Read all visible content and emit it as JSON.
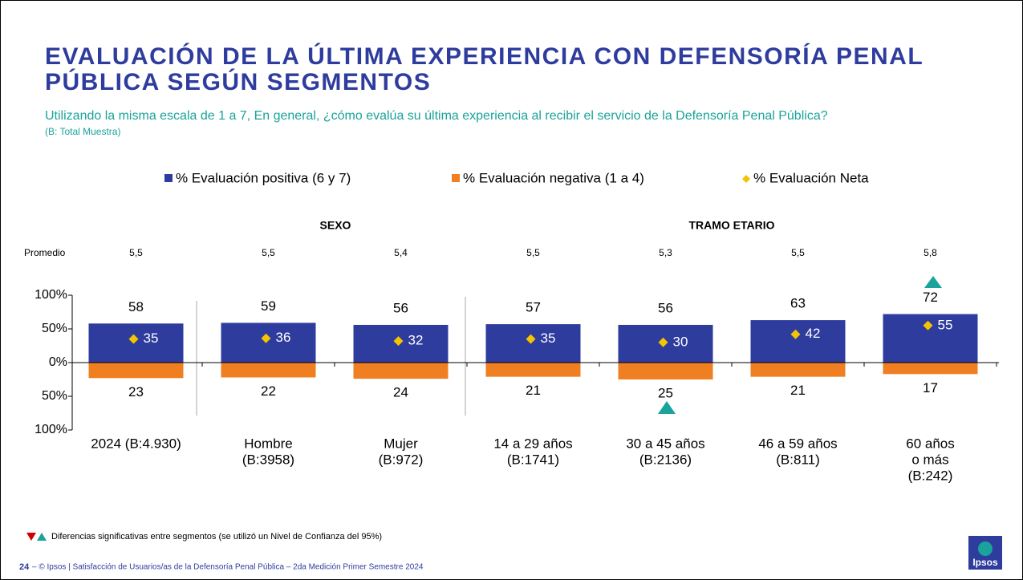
{
  "header": {
    "title": [
      "EVALUACIÓN DE LA ÚLTIMA EXPERIENCIA CON DEFENSORÍA PENAL",
      "PÚBLICA SEGÚN SEGMENTOS"
    ],
    "subtitle": "Utilizando la misma escala de 1 a 7, En general, ¿cómo evalúa su última experiencia al recibir el servicio de la Defensoría Penal Pública?",
    "base": "(B: Total Muestra)"
  },
  "chart_data": {
    "type": "bar",
    "groups": [
      "SEXO",
      "TRAMO ETARIO"
    ],
    "categories": [
      [
        "2024 (B:4.930)"
      ],
      [
        "Hombre",
        "(B:3958)"
      ],
      [
        "Mujer",
        "(B:972)"
      ],
      [
        "14 a 29 años",
        "(B:1741)"
      ],
      [
        "30 a 45 años",
        "(B:2136)"
      ],
      [
        "46 a 59 años",
        "(B:811)"
      ],
      [
        "60 años",
        "o más",
        "(B:242)"
      ]
    ],
    "average": {
      "label": "Promedio",
      "values": [
        5.5,
        5.5,
        5.4,
        5.5,
        5.3,
        5.5,
        5.8
      ],
      "value_labels": [
        "5,5",
        "5,5",
        "5,4",
        "5,5",
        "5,3",
        "5,5",
        "5,8"
      ]
    },
    "series": [
      {
        "name": "% Evaluación positiva (6 y 7)",
        "color": "#2e3c9e",
        "values": [
          58,
          59,
          56,
          57,
          56,
          63,
          72
        ]
      },
      {
        "name": "% Evaluación negativa (1 a 4)",
        "color": "#f07f22",
        "values": [
          -23,
          -22,
          -24,
          -21,
          -25,
          -21,
          -17
        ],
        "value_labels": [
          "23",
          "22",
          "24",
          "21",
          "25",
          "21",
          "17"
        ]
      },
      {
        "name": "% Evaluación Neta",
        "color": "#f5c400",
        "values": [
          35,
          36,
          32,
          35,
          30,
          42,
          55
        ]
      }
    ],
    "ylim": [
      -100,
      100
    ],
    "yticks": [
      {
        "value": -100,
        "label": "100%"
      },
      {
        "value": -50,
        "label": "50%"
      },
      {
        "value": 0,
        "label": "0%"
      },
      {
        "value": 50,
        "label": "50%"
      },
      {
        "value": 100,
        "label": "100%"
      }
    ]
  },
  "footer": {
    "note": "Diferencias significativas entre segmentos (se utilizó un Nivel de Confianza del 95%)",
    "page": "24",
    "text": "– © Ipsos | Satisfacción de Usuarios/as de la Defensoría Penal Pública – 2da Medición Primer Semestre 2024",
    "logo": "Ipsos"
  }
}
